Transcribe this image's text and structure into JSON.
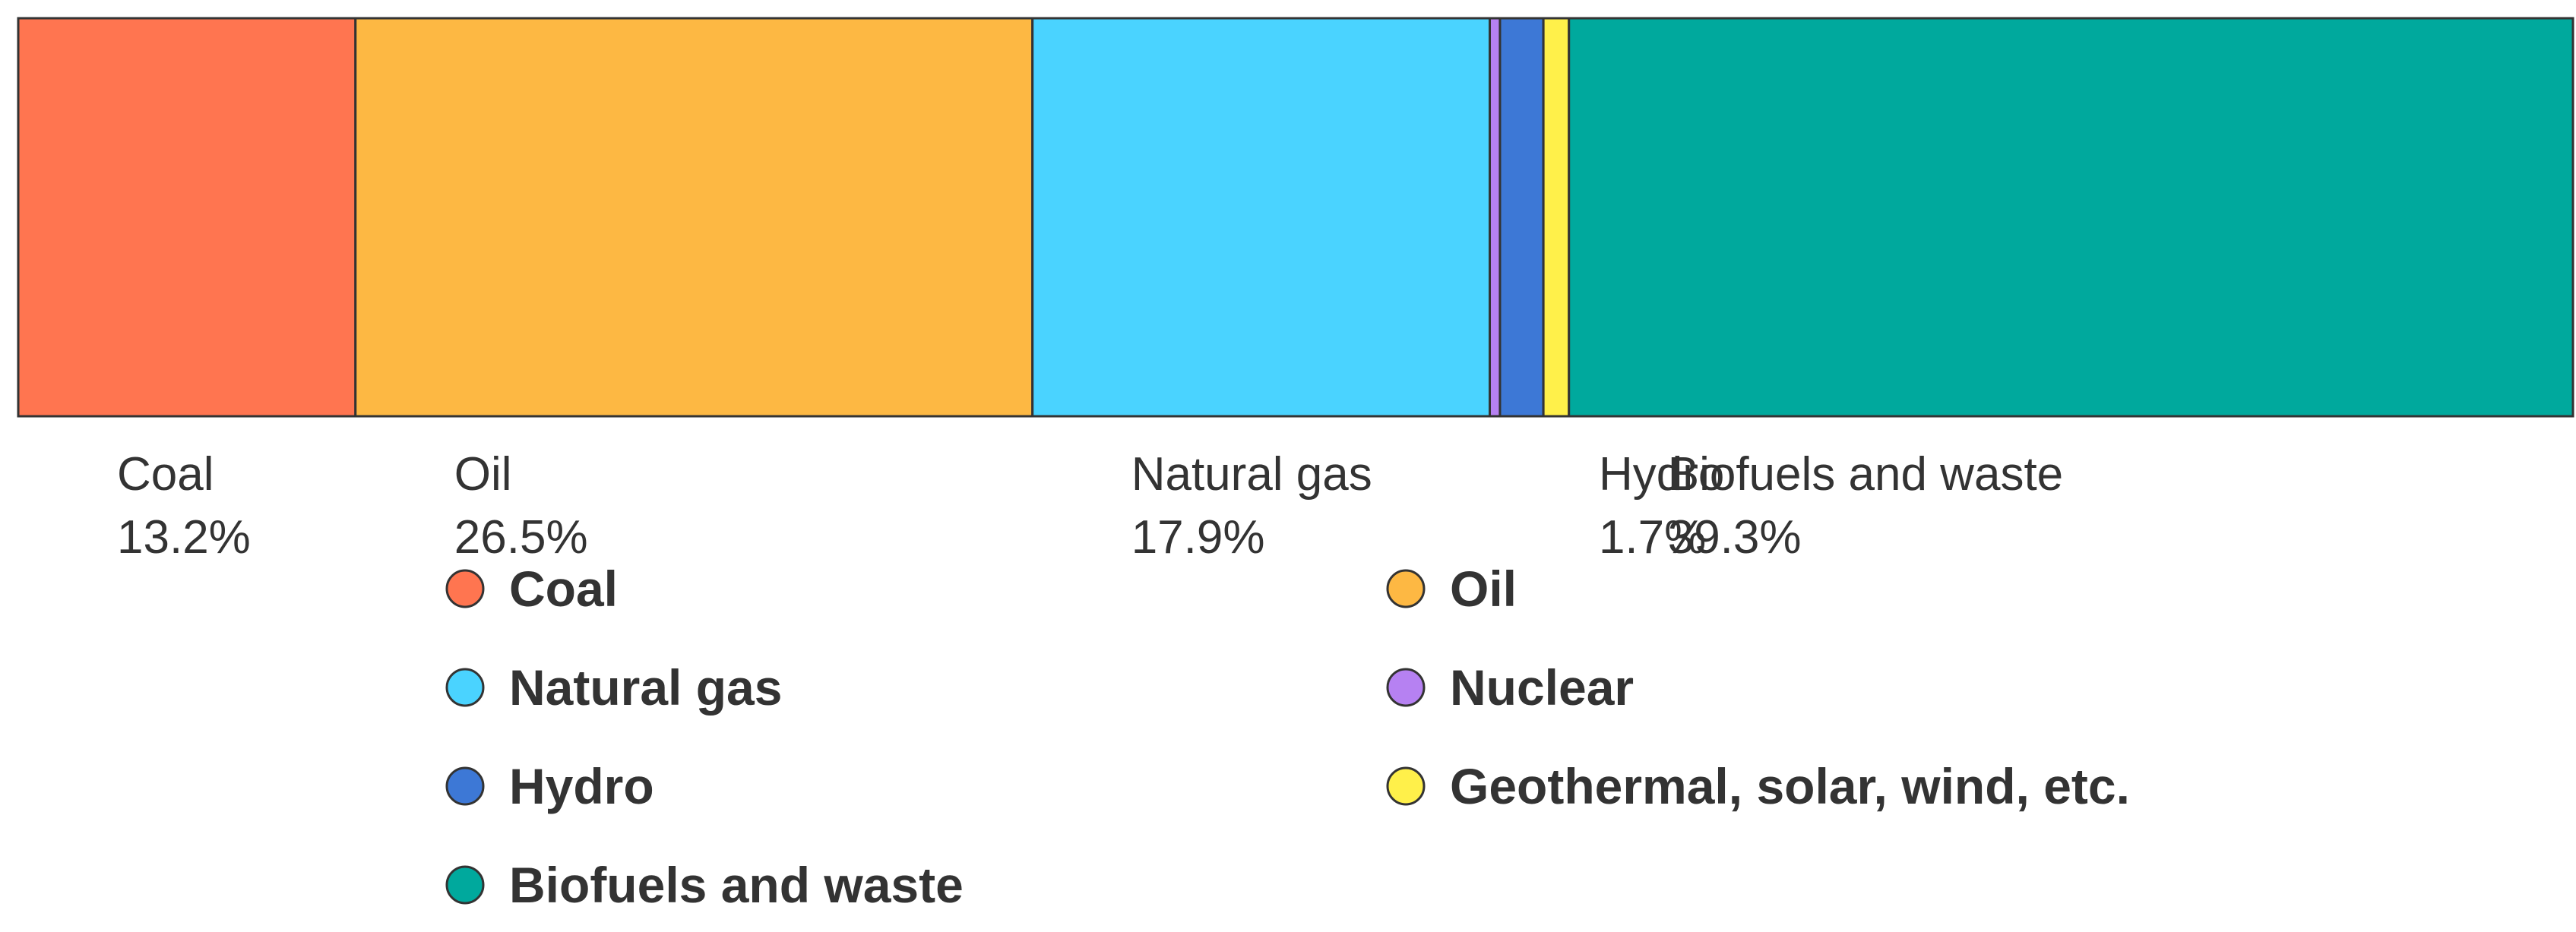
{
  "chart_data": {
    "type": "bar",
    "orientation": "horizontal-stacked-100",
    "segments": [
      {
        "name": "Coal",
        "value": 13.2,
        "label": "13.2%",
        "color": "#FF7550",
        "show_label": true
      },
      {
        "name": "Oil",
        "value": 26.5,
        "label": "26.5%",
        "color": "#FDB843",
        "show_label": true
      },
      {
        "name": "Natural gas",
        "value": 17.9,
        "label": "17.9%",
        "color": "#4AD3FF",
        "show_label": true
      },
      {
        "name": "Nuclear",
        "value": 0.4,
        "label": "",
        "color": "#B681F2",
        "show_label": false
      },
      {
        "name": "Hydro",
        "value": 1.7,
        "label": "1.7%",
        "color": "#3D78D6",
        "show_label": true
      },
      {
        "name": "Geothermal, solar, wind, etc.",
        "value": 1.0,
        "label": "",
        "color": "#FFF04A",
        "show_label": false
      },
      {
        "name": "Biofuels and waste",
        "value": 39.3,
        "label": "39.3%",
        "color": "#00A99D",
        "show_label": true
      }
    ],
    "legend": {
      "placement": "bottom",
      "columns": 2,
      "items": [
        "Coal",
        "Oil",
        "Natural gas",
        "Nuclear",
        "Hydro",
        "Geothermal, solar, wind, etc.",
        "Biofuels and waste"
      ]
    },
    "grid": false,
    "title": "",
    "xlabel": "",
    "ylabel": ""
  }
}
